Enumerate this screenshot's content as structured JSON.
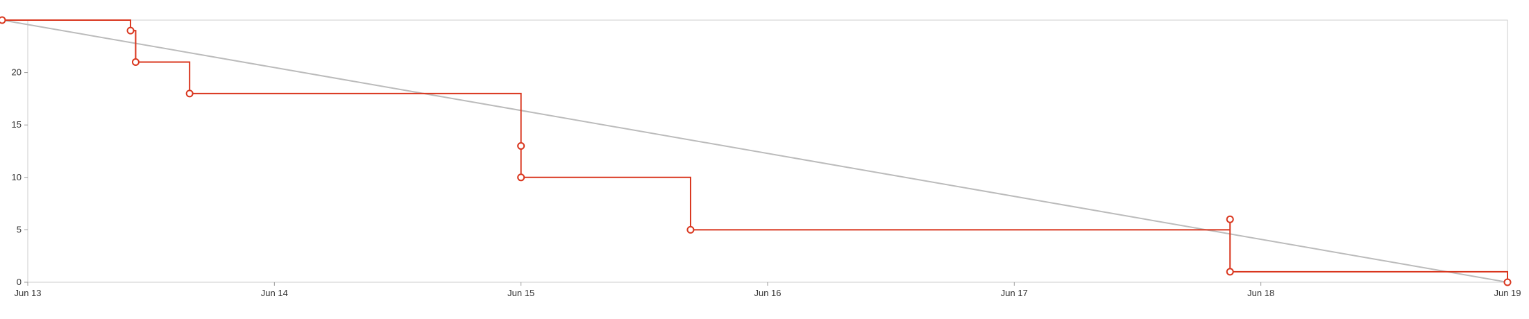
{
  "chart_data": {
    "type": "line",
    "title": "",
    "xlabel": "",
    "ylabel": "",
    "x_axis": {
      "type": "time",
      "range": [
        "2024-06-13T00:00",
        "2024-06-19T00:00"
      ],
      "tick_labels": [
        "Jun 13",
        "Jun 14",
        "Jun 15",
        "Jun 16",
        "Jun 17",
        "Jun 18",
        "Jun 19"
      ]
    },
    "y_axis": {
      "range": [
        0,
        25
      ],
      "tick_values": [
        0,
        5,
        10,
        15,
        20
      ],
      "tick_labels": [
        "0",
        "5",
        "10",
        "15",
        "20"
      ]
    },
    "grid": false,
    "legend": "none",
    "series": [
      {
        "kind": "guideline",
        "color": "#bbbbbb",
        "points": [
          {
            "x": "2024-06-12T21:30",
            "y": 25
          },
          {
            "x": "2024-06-19T00:00",
            "y": 0
          }
        ]
      },
      {
        "kind": "step",
        "color": "#d9361e",
        "points": [
          {
            "x": "2024-06-12T21:30",
            "y": 25
          },
          {
            "x": "2024-06-13T10:00",
            "y": 24
          },
          {
            "x": "2024-06-13T10:30",
            "y": 21
          },
          {
            "x": "2024-06-13T15:45",
            "y": 18
          },
          {
            "x": "2024-06-15T00:00",
            "y": 13
          },
          {
            "x": "2024-06-15T00:00",
            "y": 10
          },
          {
            "x": "2024-06-15T16:30",
            "y": 5
          },
          {
            "x": "2024-06-17T21:00",
            "y": 6
          },
          {
            "x": "2024-06-17T21:00",
            "y": 1
          },
          {
            "x": "2024-06-19T00:00",
            "y": 0
          }
        ]
      }
    ]
  }
}
